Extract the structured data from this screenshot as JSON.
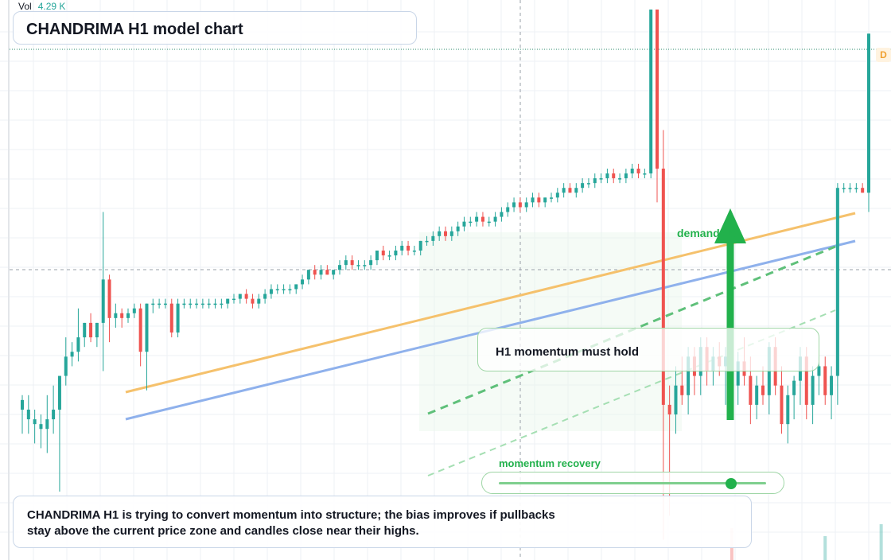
{
  "header": {
    "vol_label": "Vol",
    "vol_value": "4.29 K"
  },
  "title": "CHANDRIMA H1 model chart",
  "annotations": {
    "callout": "H1 momentum must hold",
    "demand_label": "demand    de",
    "momentum_label": "momentum recovery",
    "momentum_level": 0.87,
    "summary_line1": "CHANDRIMA H1 is trying to convert momentum into structure; the bias improves if pullbacks",
    "summary_line2": "stay above the current price zone and candles close near their highs.",
    "badge": "D"
  },
  "colors": {
    "up": "#26a69a",
    "down": "#ef5350",
    "trend_upper": "#f5c16c",
    "trend_lower": "#8fb1ec",
    "signal": "#22b14c"
  },
  "chart_data": {
    "type": "candlestick",
    "title": "CHANDRIMA H1 model chart",
    "y_range": [
      0,
      100
    ],
    "candles": [
      {
        "o": 17,
        "h": 20,
        "l": 12,
        "c": 19
      },
      {
        "o": 15,
        "h": 20,
        "l": 12,
        "c": 17
      },
      {
        "o": 14,
        "h": 17,
        "l": 10,
        "c": 15
      },
      {
        "o": 13,
        "h": 16,
        "l": 9,
        "c": 14
      },
      {
        "o": 13,
        "h": 20,
        "l": 8,
        "c": 15
      },
      {
        "o": 15,
        "h": 22,
        "l": 12,
        "c": 17
      },
      {
        "o": 17,
        "h": 23,
        "l": 0,
        "c": 24
      },
      {
        "o": 24,
        "h": 32,
        "l": 22,
        "c": 28
      },
      {
        "o": 28,
        "h": 31,
        "l": 26,
        "c": 29
      },
      {
        "o": 29,
        "h": 38,
        "l": 27,
        "c": 32
      },
      {
        "o": 32,
        "h": 35,
        "l": 30,
        "c": 35
      },
      {
        "o": 35,
        "h": 37,
        "l": 31,
        "c": 32
      },
      {
        "o": 32,
        "h": 35,
        "l": 30,
        "c": 35
      },
      {
        "o": 35,
        "h": 58,
        "l": 25,
        "c": 44
      },
      {
        "o": 44,
        "h": 45,
        "l": 31,
        "c": 36
      },
      {
        "o": 36,
        "h": 39,
        "l": 34,
        "c": 37
      },
      {
        "o": 37,
        "h": 38,
        "l": 34,
        "c": 36
      },
      {
        "o": 36,
        "h": 38,
        "l": 35,
        "c": 37
      },
      {
        "o": 37,
        "h": 39,
        "l": 36,
        "c": 38
      },
      {
        "o": 38,
        "h": 39,
        "l": 26,
        "c": 29
      },
      {
        "o": 29,
        "h": 39,
        "l": 21,
        "c": 39
      },
      {
        "o": 39,
        "h": 40,
        "l": 37,
        "c": 39
      },
      {
        "o": 39,
        "h": 40,
        "l": 38,
        "c": 39
      },
      {
        "o": 39,
        "h": 40,
        "l": 38,
        "c": 39
      },
      {
        "o": 39,
        "h": 40,
        "l": 32,
        "c": 33
      },
      {
        "o": 33,
        "h": 40,
        "l": 32,
        "c": 39
      },
      {
        "o": 39,
        "h": 40,
        "l": 38,
        "c": 39
      },
      {
        "o": 39,
        "h": 40,
        "l": 38,
        "c": 39
      },
      {
        "o": 39,
        "h": 40,
        "l": 38,
        "c": 39
      },
      {
        "o": 39,
        "h": 40,
        "l": 38,
        "c": 39
      },
      {
        "o": 39,
        "h": 40,
        "l": 38,
        "c": 39
      },
      {
        "o": 39,
        "h": 40,
        "l": 38,
        "c": 39
      },
      {
        "o": 39,
        "h": 40,
        "l": 38,
        "c": 39
      },
      {
        "o": 39,
        "h": 40,
        "l": 38,
        "c": 40
      },
      {
        "o": 40,
        "h": 41,
        "l": 39,
        "c": 40
      },
      {
        "o": 40,
        "h": 41,
        "l": 39,
        "c": 41
      },
      {
        "o": 41,
        "h": 42,
        "l": 39,
        "c": 40
      },
      {
        "o": 40,
        "h": 41,
        "l": 38,
        "c": 39
      },
      {
        "o": 39,
        "h": 41,
        "l": 38,
        "c": 40
      },
      {
        "o": 40,
        "h": 42,
        "l": 39,
        "c": 41
      },
      {
        "o": 41,
        "h": 43,
        "l": 40,
        "c": 42
      },
      {
        "o": 42,
        "h": 43,
        "l": 41,
        "c": 42
      },
      {
        "o": 42,
        "h": 43,
        "l": 41,
        "c": 42
      },
      {
        "o": 42,
        "h": 43,
        "l": 41,
        "c": 42
      },
      {
        "o": 42,
        "h": 43,
        "l": 41,
        "c": 43
      },
      {
        "o": 43,
        "h": 45,
        "l": 42,
        "c": 44
      },
      {
        "o": 44,
        "h": 46,
        "l": 43,
        "c": 46
      },
      {
        "o": 46,
        "h": 47,
        "l": 44,
        "c": 45
      },
      {
        "o": 45,
        "h": 47,
        "l": 44,
        "c": 46
      },
      {
        "o": 46,
        "h": 47,
        "l": 45,
        "c": 45
      },
      {
        "o": 45,
        "h": 46,
        "l": 44,
        "c": 46
      },
      {
        "o": 46,
        "h": 48,
        "l": 45,
        "c": 47
      },
      {
        "o": 47,
        "h": 49,
        "l": 46,
        "c": 48
      },
      {
        "o": 48,
        "h": 49,
        "l": 46,
        "c": 47
      },
      {
        "o": 47,
        "h": 48,
        "l": 46,
        "c": 47
      },
      {
        "o": 47,
        "h": 48,
        "l": 46,
        "c": 47
      },
      {
        "o": 47,
        "h": 49,
        "l": 46,
        "c": 48
      },
      {
        "o": 48,
        "h": 50,
        "l": 47,
        "c": 50
      },
      {
        "o": 50,
        "h": 51,
        "l": 48,
        "c": 49
      },
      {
        "o": 49,
        "h": 50,
        "l": 48,
        "c": 49
      },
      {
        "o": 49,
        "h": 51,
        "l": 48,
        "c": 50
      },
      {
        "o": 50,
        "h": 52,
        "l": 49,
        "c": 51
      },
      {
        "o": 51,
        "h": 52,
        "l": 49,
        "c": 50
      },
      {
        "o": 50,
        "h": 51,
        "l": 49,
        "c": 50
      },
      {
        "o": 50,
        "h": 52,
        "l": 49,
        "c": 52
      },
      {
        "o": 52,
        "h": 53,
        "l": 51,
        "c": 52
      },
      {
        "o": 52,
        "h": 54,
        "l": 51,
        "c": 53
      },
      {
        "o": 53,
        "h": 55,
        "l": 52,
        "c": 54
      },
      {
        "o": 54,
        "h": 55,
        "l": 52,
        "c": 53
      },
      {
        "o": 53,
        "h": 55,
        "l": 52,
        "c": 54
      },
      {
        "o": 54,
        "h": 56,
        "l": 53,
        "c": 55
      },
      {
        "o": 55,
        "h": 57,
        "l": 54,
        "c": 56
      },
      {
        "o": 56,
        "h": 57,
        "l": 55,
        "c": 56
      },
      {
        "o": 56,
        "h": 58,
        "l": 55,
        "c": 57
      },
      {
        "o": 57,
        "h": 58,
        "l": 55,
        "c": 56
      },
      {
        "o": 56,
        "h": 57,
        "l": 55,
        "c": 56
      },
      {
        "o": 56,
        "h": 58,
        "l": 55,
        "c": 57
      },
      {
        "o": 57,
        "h": 59,
        "l": 56,
        "c": 58
      },
      {
        "o": 58,
        "h": 60,
        "l": 57,
        "c": 59
      },
      {
        "o": 59,
        "h": 61,
        "l": 58,
        "c": 60
      },
      {
        "o": 60,
        "h": 61,
        "l": 58,
        "c": 59
      },
      {
        "o": 59,
        "h": 61,
        "l": 58,
        "c": 60
      },
      {
        "o": 60,
        "h": 62,
        "l": 59,
        "c": 61
      },
      {
        "o": 61,
        "h": 62,
        "l": 59,
        "c": 60
      },
      {
        "o": 60,
        "h": 61,
        "l": 59,
        "c": 61
      },
      {
        "o": 61,
        "h": 62,
        "l": 60,
        "c": 61
      },
      {
        "o": 61,
        "h": 63,
        "l": 60,
        "c": 62
      },
      {
        "o": 62,
        "h": 64,
        "l": 61,
        "c": 63
      },
      {
        "o": 63,
        "h": 64,
        "l": 62,
        "c": 62
      },
      {
        "o": 62,
        "h": 64,
        "l": 61,
        "c": 63
      },
      {
        "o": 63,
        "h": 65,
        "l": 62,
        "c": 64
      },
      {
        "o": 64,
        "h": 65,
        "l": 63,
        "c": 64
      },
      {
        "o": 64,
        "h": 66,
        "l": 63,
        "c": 65
      },
      {
        "o": 65,
        "h": 66,
        "l": 64,
        "c": 65
      },
      {
        "o": 65,
        "h": 67,
        "l": 64,
        "c": 66
      },
      {
        "o": 66,
        "h": 67,
        "l": 64,
        "c": 65
      },
      {
        "o": 65,
        "h": 66,
        "l": 64,
        "c": 65
      },
      {
        "o": 65,
        "h": 67,
        "l": 64,
        "c": 66
      },
      {
        "o": 66,
        "h": 68,
        "l": 65,
        "c": 67
      },
      {
        "o": 67,
        "h": 68,
        "l": 65,
        "c": 66
      },
      {
        "o": 66,
        "h": 67,
        "l": 65,
        "c": 66
      },
      {
        "o": 66,
        "h": 100,
        "l": 65,
        "c": 100
      },
      {
        "o": 100,
        "h": 100,
        "l": 60,
        "c": 67
      },
      {
        "o": 67,
        "h": 75,
        "l": -10,
        "c": 18
      },
      {
        "o": 18,
        "h": 22,
        "l": -5,
        "c": 16
      },
      {
        "o": 16,
        "h": 26,
        "l": 12,
        "c": 22
      },
      {
        "o": 22,
        "h": 28,
        "l": 18,
        "c": 20
      },
      {
        "o": 20,
        "h": 30,
        "l": 16,
        "c": 28
      },
      {
        "o": 28,
        "h": 30,
        "l": 20,
        "c": 24
      },
      {
        "o": 24,
        "h": 32,
        "l": 20,
        "c": 30
      },
      {
        "o": 30,
        "h": 32,
        "l": 22,
        "c": 25
      },
      {
        "o": 25,
        "h": 30,
        "l": 22,
        "c": 28
      },
      {
        "o": 28,
        "h": 31,
        "l": 24,
        "c": 26
      },
      {
        "o": 26,
        "h": 30,
        "l": 18,
        "c": 28
      },
      {
        "o": 28,
        "h": 30,
        "l": 20,
        "c": 22
      },
      {
        "o": 22,
        "h": 29,
        "l": 18,
        "c": 27
      },
      {
        "o": 27,
        "h": 32,
        "l": 22,
        "c": 24
      },
      {
        "o": 24,
        "h": 28,
        "l": 14,
        "c": 18
      },
      {
        "o": 18,
        "h": 24,
        "l": 15,
        "c": 22
      },
      {
        "o": 22,
        "h": 26,
        "l": 18,
        "c": 20
      },
      {
        "o": 20,
        "h": 31,
        "l": 16,
        "c": 30
      },
      {
        "o": 30,
        "h": 32,
        "l": 20,
        "c": 22
      },
      {
        "o": 22,
        "h": 26,
        "l": 12,
        "c": 14
      },
      {
        "o": 14,
        "h": 22,
        "l": 10,
        "c": 20
      },
      {
        "o": 20,
        "h": 24,
        "l": 15,
        "c": 23
      },
      {
        "o": 23,
        "h": 30,
        "l": 18,
        "c": 28
      },
      {
        "o": 28,
        "h": 30,
        "l": 15,
        "c": 18
      },
      {
        "o": 18,
        "h": 26,
        "l": 14,
        "c": 24
      },
      {
        "o": 24,
        "h": 28,
        "l": 20,
        "c": 26
      },
      {
        "o": 26,
        "h": 28,
        "l": 18,
        "c": 20
      },
      {
        "o": 20,
        "h": 26,
        "l": 15,
        "c": 24
      },
      {
        "o": 24,
        "h": 64,
        "l": 18,
        "c": 63
      },
      {
        "o": 63,
        "h": 64,
        "l": 62,
        "c": 63
      },
      {
        "o": 63,
        "h": 64,
        "l": 62,
        "c": 63
      },
      {
        "o": 63,
        "h": 64,
        "l": 62,
        "c": 63
      },
      {
        "o": 63,
        "h": 64,
        "l": 62,
        "c": 62
      },
      {
        "o": 62,
        "h": 95,
        "l": 58,
        "c": 95
      }
    ],
    "trendlines": [
      "upper channel",
      "lower channel",
      "dashed support",
      "dashed support 2"
    ],
    "grid": true
  }
}
